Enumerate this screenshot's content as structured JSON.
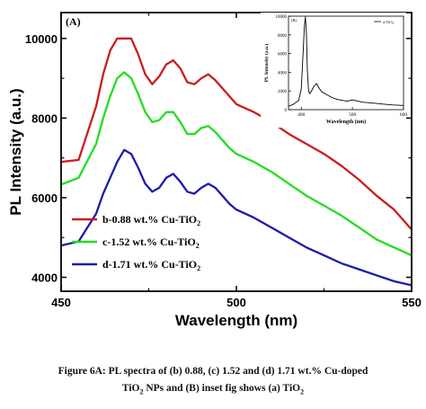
{
  "chart_data": [
    {
      "type": "line",
      "panel_label": "(A)",
      "xlabel": "Wavelength (nm)",
      "ylabel": "PL Intensity (a.u.)",
      "xlim": [
        450,
        550
      ],
      "ylim": [
        3650,
        10650
      ],
      "xticks": [
        450,
        500,
        550
      ],
      "yticks": [
        4000,
        6000,
        8000,
        10000
      ],
      "grid": false,
      "legend_position": "lower-left",
      "x": [
        450,
        455,
        460,
        462,
        464,
        466,
        468,
        470,
        472,
        474,
        476,
        478,
        480,
        482,
        484,
        486,
        488,
        490,
        492,
        494,
        496,
        498,
        500,
        505,
        510,
        515,
        520,
        525,
        530,
        535,
        540,
        545,
        550
      ],
      "series": [
        {
          "name": "b-0.88 wt.% Cu-TiO2",
          "color": "#cc1c1c",
          "values": [
            6900,
            6950,
            8300,
            9100,
            9700,
            10000,
            10000,
            10000,
            9600,
            9100,
            8850,
            9050,
            9350,
            9450,
            9250,
            8900,
            8850,
            9000,
            9100,
            8950,
            8750,
            8550,
            8350,
            8150,
            7900,
            7600,
            7350,
            7100,
            6800,
            6450,
            6050,
            5700,
            5200
          ]
        },
        {
          "name": "c-1.52 wt.% Cu-TiO2",
          "color": "#22dd22",
          "values": [
            6330,
            6500,
            7350,
            8000,
            8550,
            9000,
            9150,
            9000,
            8600,
            8150,
            7900,
            7950,
            8150,
            8150,
            7900,
            7600,
            7600,
            7750,
            7800,
            7650,
            7450,
            7250,
            7100,
            6900,
            6650,
            6350,
            6050,
            5800,
            5550,
            5250,
            4950,
            4750,
            4550
          ]
        },
        {
          "name": "d-1.71 wt.% Cu-TiO2",
          "color": "#1c1ca8",
          "values": [
            4800,
            4900,
            5600,
            6100,
            6500,
            6900,
            7200,
            7100,
            6750,
            6350,
            6150,
            6250,
            6500,
            6600,
            6400,
            6150,
            6100,
            6250,
            6350,
            6250,
            6050,
            5850,
            5700,
            5500,
            5250,
            5000,
            4750,
            4550,
            4350,
            4200,
            4050,
            3900,
            3800
          ]
        }
      ]
    },
    {
      "type": "line",
      "panel_label": "(B)",
      "xlabel": "Wavelength (nm)",
      "ylabel": "PL Intensity (a.u.)",
      "xlim": [
        375,
        600
      ],
      "ylim": [
        0,
        10000
      ],
      "xticks": [
        400,
        500,
        600
      ],
      "yticks": [
        0,
        2000,
        4000,
        6000,
        8000,
        10000
      ],
      "legend_position": "top-right",
      "x": [
        375,
        385,
        395,
        400,
        404,
        406,
        408,
        410,
        412,
        414,
        416,
        420,
        425,
        430,
        435,
        440,
        450,
        460,
        470,
        480,
        490,
        500,
        520,
        540,
        560,
        580,
        600
      ],
      "series": [
        {
          "name": "a-TiO2",
          "color": "#000000",
          "values": [
            350,
            600,
            1000,
            2200,
            6500,
            8800,
            9900,
            8200,
            4200,
            2200,
            1700,
            2000,
            2500,
            2800,
            2300,
            1900,
            1600,
            1300,
            1100,
            1000,
            900,
            1050,
            800,
            700,
            600,
            500,
            450
          ]
        }
      ]
    }
  ],
  "caption": {
    "line1": "Figure 6A: PL spectra of (b) 0.88, (c) 1.52 and (d) 1.71 wt.% Cu-doped",
    "line2_a": "TiO",
    "line2_a_sub": "2",
    "line2_b": " NPs and (B) inset fig shows (a) TiO",
    "line2_b_sub": "2"
  }
}
